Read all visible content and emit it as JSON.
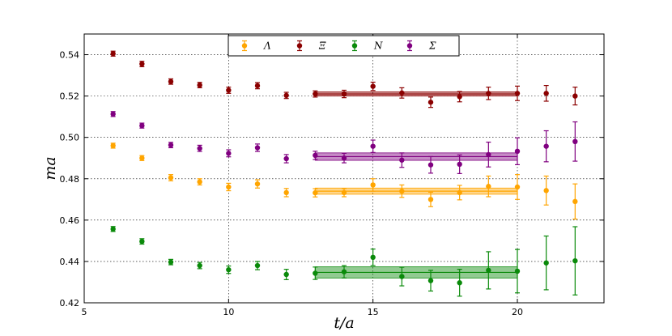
{
  "chart_data": {
    "type": "scatter",
    "xlabel": "t/a",
    "ylabel": "ma",
    "xlim": [
      5,
      23
    ],
    "ylim": [
      0.42,
      0.55
    ],
    "xticks": [
      "5",
      "10",
      "15",
      "20"
    ],
    "yticks": [
      "0.42",
      "0.44",
      "0.46",
      "0.48",
      "0.50",
      "0.52",
      "0.54"
    ],
    "grid": "dotted",
    "legend_position": "top-center",
    "series": [
      {
        "name": "Λ",
        "color": "#FFA500",
        "points": [
          {
            "x": 6,
            "y": 0.496,
            "err": 0.0012
          },
          {
            "x": 7,
            "y": 0.49,
            "err": 0.0012
          },
          {
            "x": 8,
            "y": 0.4805,
            "err": 0.0015
          },
          {
            "x": 9,
            "y": 0.4785,
            "err": 0.0015
          },
          {
            "x": 10,
            "y": 0.476,
            "err": 0.0018
          },
          {
            "x": 11,
            "y": 0.4775,
            "err": 0.002
          },
          {
            "x": 12,
            "y": 0.4733,
            "err": 0.002
          },
          {
            "x": 13,
            "y": 0.4732,
            "err": 0.002
          },
          {
            "x": 14,
            "y": 0.4733,
            "err": 0.002
          },
          {
            "x": 15,
            "y": 0.477,
            "err": 0.003
          },
          {
            "x": 16,
            "y": 0.474,
            "err": 0.003
          },
          {
            "x": 17,
            "y": 0.47,
            "err": 0.0035
          },
          {
            "x": 18,
            "y": 0.4733,
            "err": 0.0035
          },
          {
            "x": 19,
            "y": 0.4763,
            "err": 0.005
          },
          {
            "x": 20,
            "y": 0.476,
            "err": 0.006
          },
          {
            "x": 21,
            "y": 0.4743,
            "err": 0.007
          },
          {
            "x": 22,
            "y": 0.469,
            "err": 0.0085
          }
        ],
        "fit": {
          "x_from": 13,
          "x_to": 20,
          "value": 0.474,
          "err": 0.0015
        }
      },
      {
        "name": "Ξ",
        "color": "#8B0000",
        "points": [
          {
            "x": 6,
            "y": 0.5405,
            "err": 0.0012
          },
          {
            "x": 7,
            "y": 0.5355,
            "err": 0.0013
          },
          {
            "x": 8,
            "y": 0.527,
            "err": 0.0013
          },
          {
            "x": 9,
            "y": 0.5253,
            "err": 0.0013
          },
          {
            "x": 10,
            "y": 0.5228,
            "err": 0.0015
          },
          {
            "x": 11,
            "y": 0.525,
            "err": 0.0015
          },
          {
            "x": 12,
            "y": 0.5203,
            "err": 0.0015
          },
          {
            "x": 13,
            "y": 0.521,
            "err": 0.0015
          },
          {
            "x": 14,
            "y": 0.521,
            "err": 0.0018
          },
          {
            "x": 15,
            "y": 0.5247,
            "err": 0.002
          },
          {
            "x": 16,
            "y": 0.5215,
            "err": 0.0025
          },
          {
            "x": 17,
            "y": 0.517,
            "err": 0.0025
          },
          {
            "x": 18,
            "y": 0.5197,
            "err": 0.0025
          },
          {
            "x": 19,
            "y": 0.5213,
            "err": 0.003
          },
          {
            "x": 20,
            "y": 0.5213,
            "err": 0.0035
          },
          {
            "x": 21,
            "y": 0.5213,
            "err": 0.0038
          },
          {
            "x": 22,
            "y": 0.52,
            "err": 0.0043
          }
        ],
        "fit": {
          "x_from": 13,
          "x_to": 20,
          "value": 0.521,
          "err": 0.001
        }
      },
      {
        "name": "N",
        "color": "#0A8A0A",
        "points": [
          {
            "x": 6,
            "y": 0.4557,
            "err": 0.0012
          },
          {
            "x": 7,
            "y": 0.4497,
            "err": 0.0013
          },
          {
            "x": 8,
            "y": 0.4397,
            "err": 0.0013
          },
          {
            "x": 9,
            "y": 0.438,
            "err": 0.0015
          },
          {
            "x": 10,
            "y": 0.436,
            "err": 0.0018
          },
          {
            "x": 11,
            "y": 0.438,
            "err": 0.002
          },
          {
            "x": 12,
            "y": 0.4337,
            "err": 0.0025
          },
          {
            "x": 13,
            "y": 0.4343,
            "err": 0.003
          },
          {
            "x": 14,
            "y": 0.435,
            "err": 0.003
          },
          {
            "x": 15,
            "y": 0.442,
            "err": 0.004
          },
          {
            "x": 16,
            "y": 0.4327,
            "err": 0.0045
          },
          {
            "x": 17,
            "y": 0.4307,
            "err": 0.005
          },
          {
            "x": 18,
            "y": 0.4297,
            "err": 0.0065
          },
          {
            "x": 19,
            "y": 0.4357,
            "err": 0.009
          },
          {
            "x": 20,
            "y": 0.4353,
            "err": 0.0105
          },
          {
            "x": 21,
            "y": 0.4393,
            "err": 0.013
          },
          {
            "x": 22,
            "y": 0.4403,
            "err": 0.0165
          }
        ],
        "fit": {
          "x_from": 13,
          "x_to": 20,
          "value": 0.4347,
          "err": 0.0027
        }
      },
      {
        "name": "Σ",
        "color": "#800080",
        "points": [
          {
            "x": 6,
            "y": 0.5113,
            "err": 0.0012
          },
          {
            "x": 7,
            "y": 0.5057,
            "err": 0.0012
          },
          {
            "x": 8,
            "y": 0.4963,
            "err": 0.0013
          },
          {
            "x": 9,
            "y": 0.4947,
            "err": 0.0015
          },
          {
            "x": 10,
            "y": 0.4923,
            "err": 0.0017
          },
          {
            "x": 11,
            "y": 0.495,
            "err": 0.0018
          },
          {
            "x": 12,
            "y": 0.4897,
            "err": 0.002
          },
          {
            "x": 13,
            "y": 0.4913,
            "err": 0.002
          },
          {
            "x": 14,
            "y": 0.49,
            "err": 0.0023
          },
          {
            "x": 15,
            "y": 0.4957,
            "err": 0.003
          },
          {
            "x": 16,
            "y": 0.489,
            "err": 0.0035
          },
          {
            "x": 17,
            "y": 0.4867,
            "err": 0.004
          },
          {
            "x": 18,
            "y": 0.487,
            "err": 0.0045
          },
          {
            "x": 19,
            "y": 0.4917,
            "err": 0.006
          },
          {
            "x": 20,
            "y": 0.4933,
            "err": 0.0065
          },
          {
            "x": 21,
            "y": 0.4957,
            "err": 0.0075
          },
          {
            "x": 22,
            "y": 0.498,
            "err": 0.0095
          }
        ],
        "fit": {
          "x_from": 13,
          "x_to": 20,
          "value": 0.4907,
          "err": 0.0018
        }
      }
    ]
  }
}
